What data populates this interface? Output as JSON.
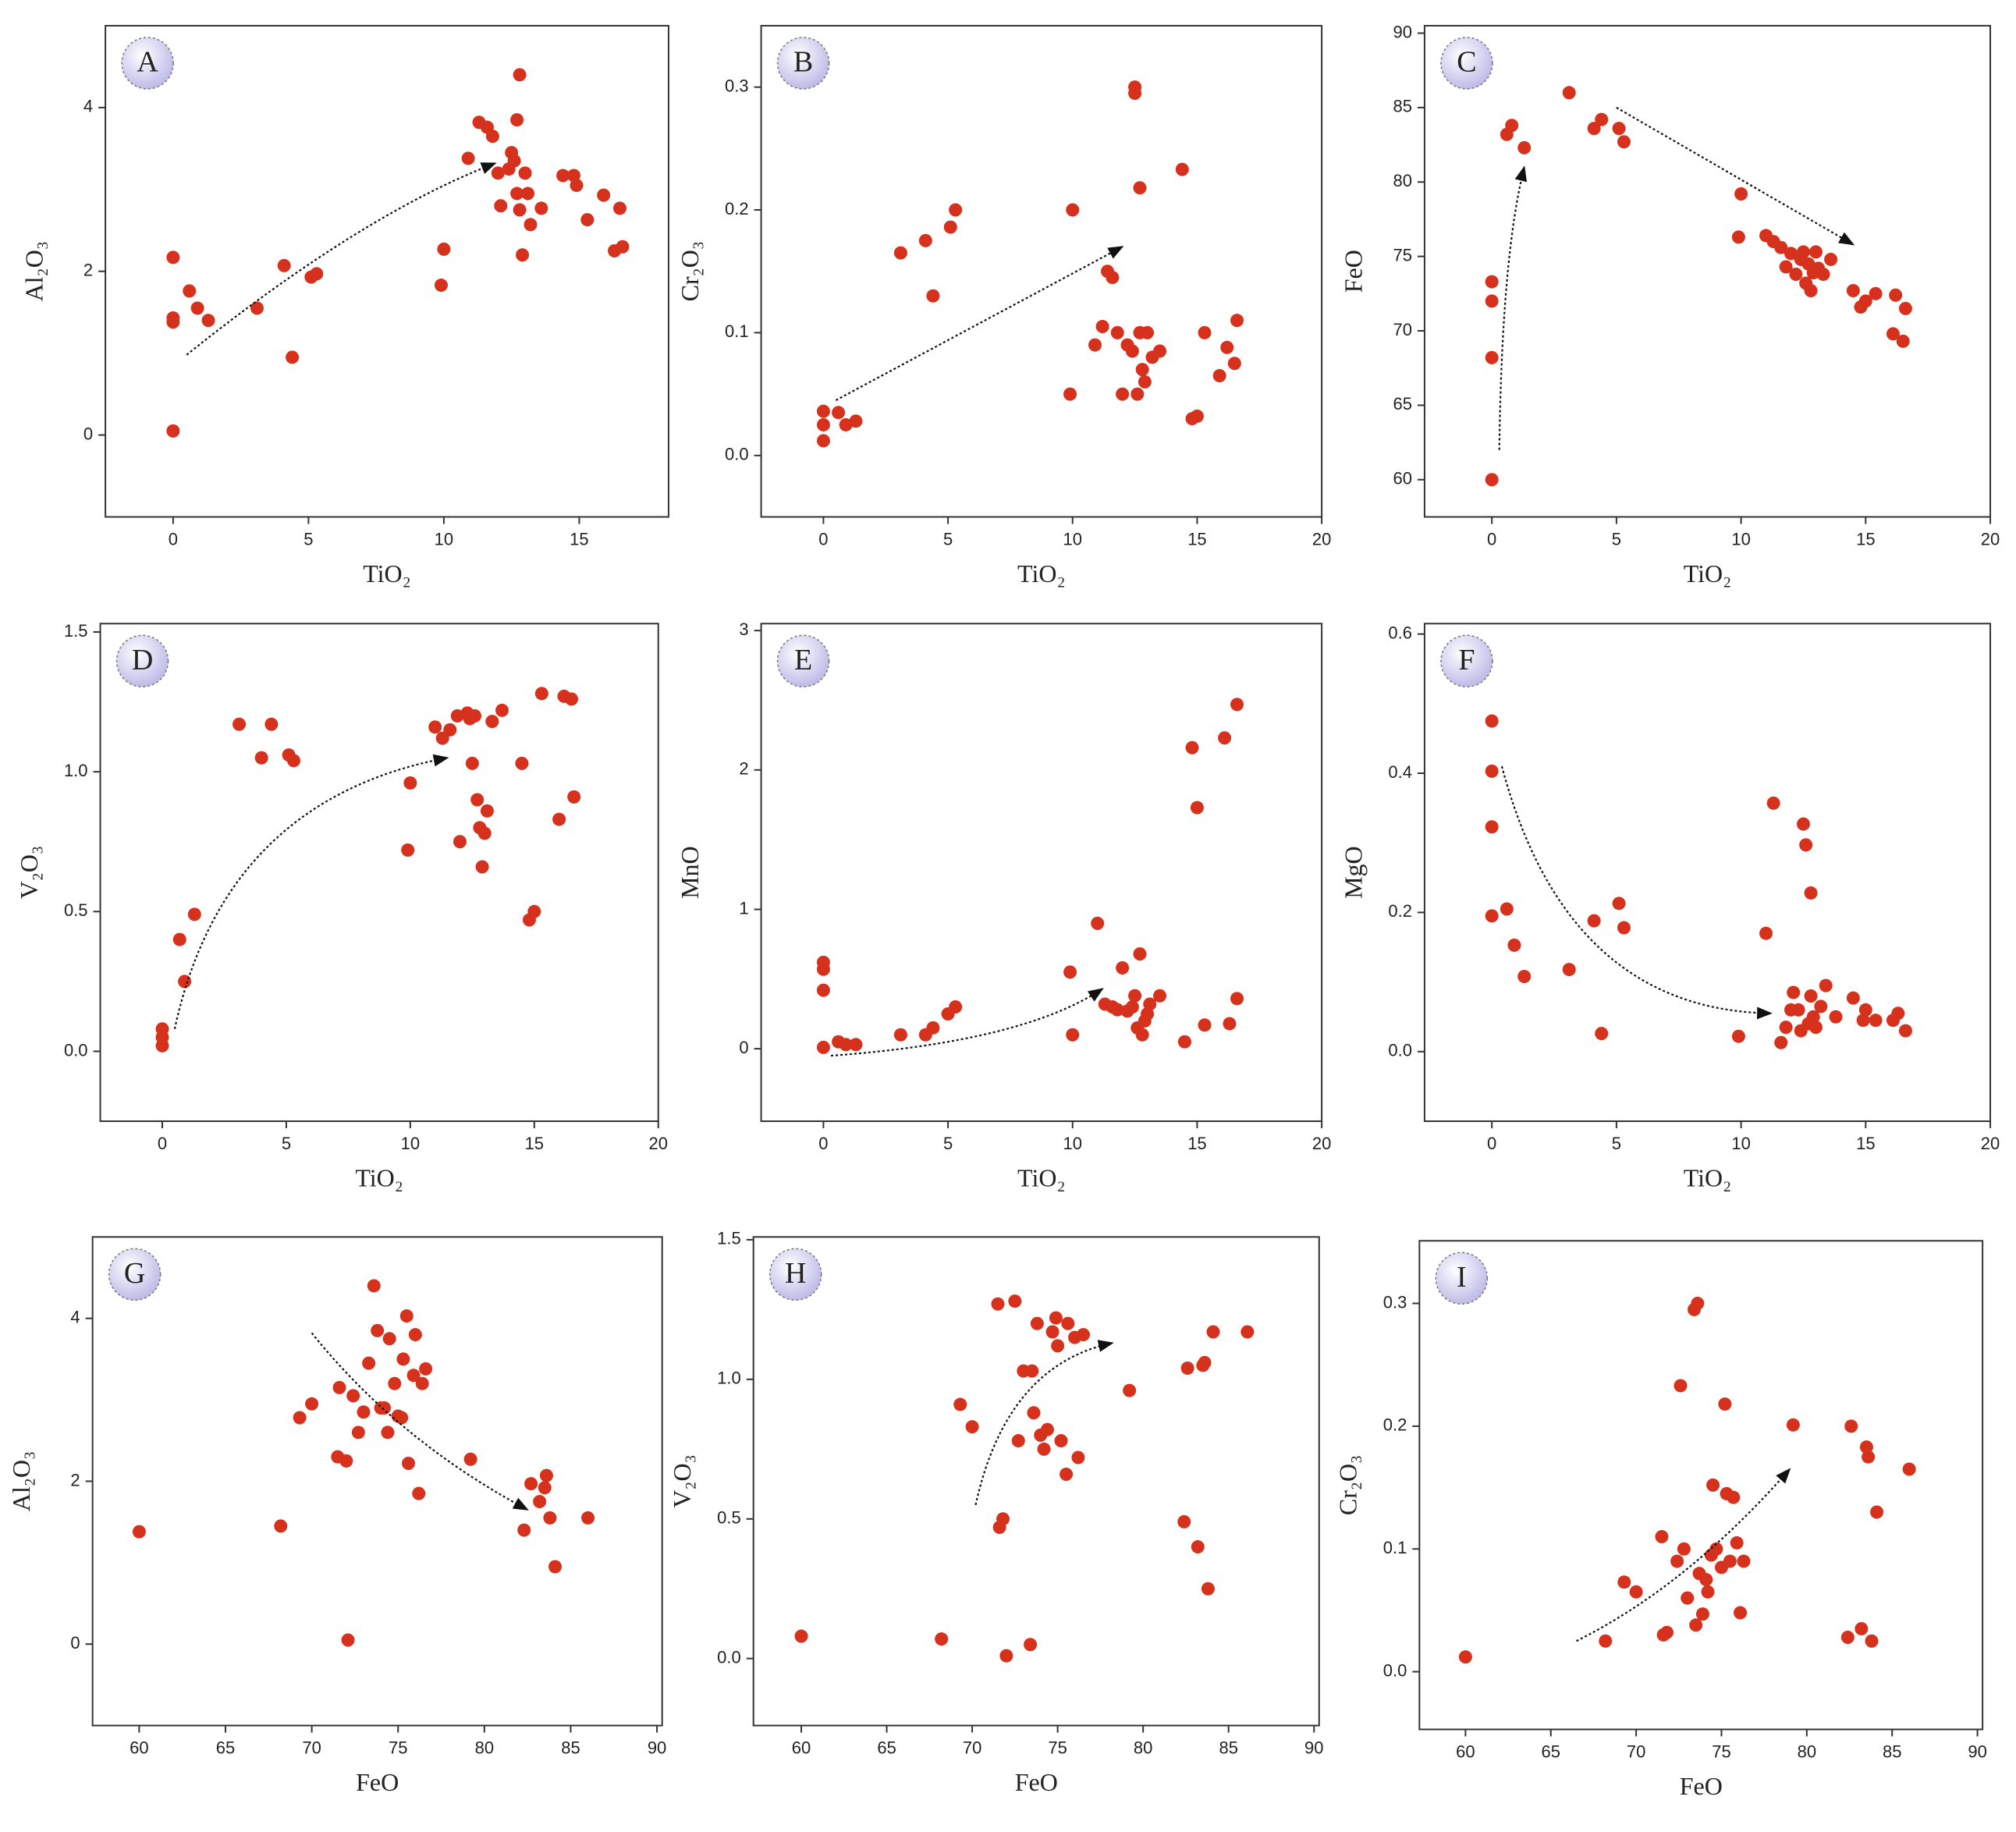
{
  "chart_data": [
    {
      "type": "scatter",
      "label": "A",
      "x_label": "TiO₂",
      "y_label": "Al₂O₃",
      "color": "#d6311c",
      "xlim": [
        -2.5,
        18.3
      ],
      "ylim": [
        -1,
        5
      ],
      "xticks": [
        0,
        5,
        10,
        15
      ],
      "yticks": [
        0,
        2,
        4
      ],
      "x": [
        0,
        0,
        0,
        0,
        0.6,
        0.9,
        1.3,
        3.1,
        4.1,
        4.4,
        5.1,
        5.3,
        9.9,
        10,
        10.9,
        11.3,
        11.6,
        11.8,
        12,
        12.1,
        12.4,
        12.5,
        12.6,
        12.7,
        12.8,
        12.7,
        12.8,
        12.9,
        13,
        13.1,
        13.2,
        13.6,
        14.4,
        14.8,
        14.9,
        15.3,
        15.9,
        16.3,
        16.5,
        16.6
      ],
      "y": [
        2.17,
        1.43,
        1.38,
        0.05,
        1.76,
        1.55,
        1.4,
        1.55,
        2.07,
        0.95,
        1.93,
        1.97,
        1.83,
        2.27,
        3.38,
        3.82,
        3.76,
        3.65,
        3.2,
        2.8,
        3.25,
        3.45,
        3.35,
        3.85,
        4.4,
        2.95,
        2.75,
        2.2,
        3.2,
        2.95,
        2.57,
        2.77,
        3.17,
        3.17,
        3.05,
        2.63,
        2.93,
        2.25,
        2.77,
        2.3
      ],
      "arrows": [
        [
          [
            0.5,
            0.98
          ],
          [
            7,
            2.7
          ],
          [
            11.9,
            3.32
          ]
        ]
      ]
    },
    {
      "type": "scatter",
      "label": "B",
      "x_label": "TiO₂",
      "y_label": "Cr₂O₃",
      "color": "#d6311c",
      "xlim": [
        -2.5,
        20
      ],
      "ylim": [
        -0.05,
        0.35
      ],
      "xticks": [
        0,
        5,
        10,
        15,
        20
      ],
      "yticks": [
        {
          "value": 0,
          "label": "0.0"
        },
        0.1,
        0.2,
        0.3
      ],
      "x": [
        0,
        0,
        0,
        0.6,
        0.9,
        1.3,
        3.1,
        4.1,
        4.4,
        5.1,
        5.3,
        9.9,
        10,
        10.9,
        11.2,
        11.4,
        11.6,
        11.8,
        12,
        12.2,
        12.4,
        12.5,
        12.5,
        12.6,
        12.7,
        12.7,
        12.8,
        12.9,
        13,
        13.2,
        13.5,
        14.4,
        14.8,
        15,
        15.3,
        15.9,
        16.2,
        16.5,
        16.6
      ],
      "y": [
        0.036,
        0.025,
        0.012,
        0.035,
        0.025,
        0.028,
        0.165,
        0.175,
        0.13,
        0.186,
        0.2,
        0.05,
        0.2,
        0.09,
        0.105,
        0.15,
        0.145,
        0.1,
        0.05,
        0.09,
        0.085,
        0.295,
        0.3,
        0.05,
        0.218,
        0.1,
        0.07,
        0.06,
        0.1,
        0.08,
        0.085,
        0.233,
        0.03,
        0.032,
        0.1,
        0.065,
        0.088,
        0.075,
        0.11
      ],
      "arrows": [
        [
          [
            0.5,
            0.045
          ],
          [
            6.25,
            0.1075
          ],
          [
            12,
            0.17
          ]
        ]
      ]
    },
    {
      "type": "scatter",
      "label": "C",
      "x_label": "TiO₂",
      "y_label": "FeO",
      "color": "#d6311c",
      "xlim": [
        -2.7,
        20
      ],
      "ylim": [
        57.5,
        90.5
      ],
      "xticks": [
        0,
        5,
        10,
        15,
        20
      ],
      "yticks": [
        60,
        65,
        70,
        75,
        80,
        85,
        90
      ],
      "x": [
        0,
        0,
        0,
        0,
        0.6,
        0.8,
        1.3,
        3.1,
        4.1,
        4.4,
        5.1,
        5.3,
        9.9,
        10,
        11,
        11.3,
        11.6,
        11.8,
        12,
        12.2,
        12.4,
        12.5,
        12.6,
        12.7,
        12.8,
        12.9,
        13,
        13.1,
        13.3,
        13.6,
        14.5,
        14.8,
        15,
        15.4,
        16.1,
        16.2,
        16.5,
        16.6
      ],
      "y": [
        73.3,
        72,
        68.2,
        60,
        83.2,
        83.8,
        82.3,
        86,
        83.6,
        84.2,
        83.6,
        82.7,
        76.3,
        79.2,
        76.4,
        76,
        75.6,
        74.3,
        75.2,
        73.8,
        74.8,
        75.3,
        73.2,
        74.5,
        72.7,
        73.9,
        75.3,
        74.2,
        73.8,
        74.8,
        72.7,
        71.6,
        72,
        72.5,
        69.8,
        72.4,
        69.3,
        71.5
      ],
      "arrows": [
        [
          [
            0.3,
            62
          ],
          [
            0.4,
            75
          ],
          [
            1.3,
            81
          ]
        ],
        [
          [
            5,
            85
          ],
          [
            9.75,
            80.4
          ],
          [
            14.5,
            75.8
          ]
        ]
      ]
    },
    {
      "type": "scatter",
      "label": "D",
      "x_label": "TiO₂",
      "y_label": "V₂O₃",
      "color": "#d6311c",
      "xlim": [
        -2.5,
        20
      ],
      "ylim": [
        -0.25,
        1.53
      ],
      "xticks": [
        0,
        5,
        10,
        15,
        20
      ],
      "yticks": [
        {
          "value": 0,
          "label": "0.0"
        },
        0.5,
        {
          "value": 1,
          "label": "1.0"
        },
        1.5
      ],
      "x": [
        0,
        0,
        0,
        0.7,
        0.9,
        1.3,
        3.1,
        4,
        4.4,
        5.1,
        5.3,
        9.9,
        10,
        11,
        11.3,
        11.6,
        11.9,
        12,
        12.3,
        12.4,
        12.5,
        12.6,
        12.7,
        12.8,
        12.9,
        13,
        13.1,
        13.3,
        13.7,
        14.5,
        14.8,
        15,
        15.3,
        16,
        16.2,
        16.5,
        16.6
      ],
      "y": [
        0.08,
        0.05,
        0.02,
        0.4,
        0.25,
        0.49,
        1.17,
        1.05,
        1.17,
        1.06,
        1.04,
        0.72,
        0.96,
        1.16,
        1.12,
        1.15,
        1.2,
        0.75,
        1.21,
        1.19,
        1.03,
        1.2,
        0.9,
        0.8,
        0.66,
        0.78,
        0.86,
        1.18,
        1.22,
        1.03,
        0.47,
        0.5,
        1.28,
        0.83,
        1.27,
        1.26,
        0.91
      ],
      "arrows": [
        [
          [
            0.5,
            0.08
          ],
          [
            2.5,
            0.9
          ],
          [
            11.5,
            1.05
          ]
        ]
      ]
    },
    {
      "type": "scatter",
      "label": "E",
      "x_label": "TiO₂",
      "y_label": "MnO",
      "color": "#d6311c",
      "xlim": [
        -2.5,
        20
      ],
      "ylim": [
        -0.52,
        3.05
      ],
      "xticks": [
        0,
        5,
        10,
        15,
        20
      ],
      "yticks": [
        0,
        1,
        2,
        3
      ],
      "x": [
        0,
        0,
        0,
        0,
        0.6,
        0.9,
        1.3,
        3.1,
        4.1,
        4.4,
        5,
        5.3,
        9.9,
        10,
        11,
        11.3,
        11.6,
        11.8,
        12,
        12.2,
        12.4,
        12.5,
        12.6,
        12.7,
        12.8,
        12.9,
        13,
        13.1,
        13.5,
        14.5,
        14.8,
        15,
        15.3,
        16.1,
        16.3,
        16.6,
        16.6
      ],
      "y": [
        0.62,
        0.57,
        0.42,
        0.01,
        0.05,
        0.03,
        0.03,
        0.1,
        0.1,
        0.15,
        0.25,
        0.3,
        0.55,
        0.1,
        0.9,
        0.32,
        0.3,
        0.28,
        0.58,
        0.27,
        0.3,
        0.38,
        0.15,
        0.68,
        0.1,
        0.2,
        0.25,
        0.32,
        0.38,
        0.05,
        2.16,
        1.73,
        0.17,
        2.23,
        0.18,
        2.47,
        0.36
      ],
      "arrows": [
        [
          [
            0.3,
            -0.05
          ],
          [
            8,
            0.05
          ],
          [
            11.2,
            0.43
          ]
        ]
      ]
    },
    {
      "type": "scatter",
      "label": "F",
      "x_label": "TiO₂",
      "y_label": "MgO",
      "color": "#d6311c",
      "xlim": [
        -2.7,
        20
      ],
      "ylim": [
        -0.1,
        0.615
      ],
      "xticks": [
        0,
        5,
        10,
        15,
        20
      ],
      "yticks": [
        {
          "value": 0,
          "label": "0.0"
        },
        0.2,
        0.4,
        0.6
      ],
      "x": [
        0,
        0,
        0,
        0,
        0.6,
        0.9,
        1.3,
        3.1,
        4.1,
        4.4,
        5.1,
        5.3,
        9.9,
        11,
        11.3,
        11.6,
        11.8,
        12,
        12.1,
        12.3,
        12.4,
        12.5,
        12.6,
        12.7,
        12.8,
        12.8,
        12.9,
        13,
        13.2,
        13.4,
        13.8,
        14.5,
        14.9,
        15,
        15.4,
        16.1,
        16.3,
        16.6
      ],
      "y": [
        0.475,
        0.403,
        0.323,
        0.195,
        0.205,
        0.153,
        0.108,
        0.118,
        0.188,
        0.026,
        0.213,
        0.178,
        0.022,
        0.17,
        0.357,
        0.013,
        0.035,
        0.06,
        0.085,
        0.06,
        0.03,
        0.327,
        0.297,
        0.04,
        0.228,
        0.08,
        0.05,
        0.035,
        0.065,
        0.095,
        0.05,
        0.077,
        0.045,
        0.06,
        0.045,
        0.045,
        0.055,
        0.03
      ],
      "arrows": [
        [
          [
            0.4,
            0.41
          ],
          [
            3,
            0.06
          ],
          [
            11.2,
            0.055
          ]
        ]
      ]
    },
    {
      "type": "scatter",
      "label": "G",
      "x_label": "FeO",
      "y_label": "Al₂O₃",
      "color": "#d6311c",
      "xlim": [
        57.3,
        90.3
      ],
      "ylim": [
        -1,
        5
      ],
      "xticks": [
        60,
        65,
        70,
        75,
        80,
        85,
        90
      ],
      "yticks": [
        0,
        2,
        4
      ],
      "x": [
        60,
        68.2,
        69.3,
        70,
        71.5,
        71.6,
        72,
        72.1,
        72.4,
        72.7,
        73,
        73.3,
        73.6,
        73.8,
        74,
        74.2,
        74.4,
        74.5,
        74.8,
        75,
        75.2,
        75.3,
        75.5,
        75.6,
        75.9,
        76,
        76.2,
        76.4,
        76.6,
        79.2,
        82.3,
        82.7,
        83.2,
        83.5,
        83.6,
        83.8,
        84.1,
        86
      ],
      "y": [
        1.38,
        1.45,
        2.78,
        2.95,
        2.3,
        3.15,
        2.25,
        0.05,
        3.05,
        2.6,
        2.85,
        3.45,
        4.4,
        3.85,
        2.9,
        2.9,
        2.6,
        3.75,
        3.2,
        2.8,
        2.78,
        3.5,
        4.03,
        2.22,
        3.3,
        3.8,
        1.85,
        3.2,
        3.38,
        2.27,
        1.4,
        1.97,
        1.75,
        1.92,
        2.07,
        1.55,
        0.95,
        1.55
      ],
      "arrows": [
        [
          [
            70,
            3.82
          ],
          [
            75,
            2.5
          ],
          [
            82.5,
            1.65
          ]
        ]
      ]
    },
    {
      "type": "scatter",
      "label": "H",
      "x_label": "FeO",
      "y_label": "V₂O₃",
      "color": "#d6311c",
      "xlim": [
        57.2,
        90.3
      ],
      "ylim": [
        -0.24,
        1.51
      ],
      "xticks": [
        60,
        65,
        70,
        75,
        80,
        85,
        90
      ],
      "yticks": [
        {
          "value": 0,
          "label": "0.0"
        },
        0.5,
        {
          "value": 1,
          "label": "1.0"
        },
        1.5
      ],
      "x": [
        60,
        68.2,
        69.3,
        70,
        71.5,
        71.6,
        71.8,
        72,
        72.5,
        72.7,
        73,
        73.4,
        73.5,
        73.6,
        73.8,
        74,
        74.2,
        74.4,
        74.7,
        74.9,
        75,
        75.2,
        75.5,
        75.6,
        76,
        76.2,
        76.5,
        79.2,
        82.4,
        82.6,
        83.2,
        83.5,
        83.6,
        83.8,
        84.1,
        86.1
      ],
      "y": [
        0.08,
        0.07,
        0.91,
        0.83,
        1.27,
        0.47,
        0.5,
        0.01,
        1.28,
        0.78,
        1.03,
        0.05,
        1.03,
        0.88,
        1.2,
        0.8,
        0.75,
        0.82,
        1.17,
        1.22,
        1.12,
        0.78,
        0.66,
        1.2,
        1.15,
        0.72,
        1.16,
        0.96,
        0.49,
        1.04,
        0.4,
        1.05,
        1.06,
        0.25,
        1.17,
        1.17
      ],
      "arrows": [
        [
          [
            70.2,
            0.55
          ],
          [
            72,
            1.05
          ],
          [
            78.2,
            1.13
          ]
        ]
      ]
    },
    {
      "type": "scatter",
      "label": "I",
      "x_label": "FeO",
      "y_label": "Cr₂O₃",
      "color": "#d6311c",
      "xlim": [
        57.3,
        90.3
      ],
      "ylim": [
        -0.047,
        0.351
      ],
      "xticks": [
        60,
        65,
        70,
        75,
        80,
        85,
        90
      ],
      "yticks": [
        {
          "value": 0,
          "label": "0.0"
        },
        0.1,
        0.2,
        0.3
      ],
      "x": [
        60,
        68.2,
        69.3,
        70,
        71.5,
        71.6,
        71.8,
        72.4,
        72.6,
        72.8,
        73,
        73.4,
        73.6,
        73.5,
        73.7,
        73.9,
        74.1,
        74.2,
        74.4,
        74.5,
        74.7,
        75,
        75.2,
        75.3,
        75.5,
        75.7,
        75.9,
        76.1,
        76.3,
        79.2,
        82.4,
        82.6,
        83.2,
        83.5,
        83.6,
        83.8,
        84.1,
        86
      ],
      "y": [
        0.012,
        0.025,
        0.073,
        0.065,
        0.11,
        0.03,
        0.032,
        0.09,
        0.233,
        0.1,
        0.06,
        0.295,
        0.3,
        0.038,
        0.08,
        0.047,
        0.075,
        0.065,
        0.095,
        0.152,
        0.1,
        0.085,
        0.218,
        0.145,
        0.09,
        0.142,
        0.105,
        0.048,
        0.09,
        0.201,
        0.028,
        0.2,
        0.035,
        0.183,
        0.175,
        0.025,
        0.13,
        0.165
      ],
      "arrows": [
        [
          [
            66.5,
            0.025
          ],
          [
            73,
            0.07
          ],
          [
            79,
            0.165
          ]
        ]
      ]
    }
  ]
}
